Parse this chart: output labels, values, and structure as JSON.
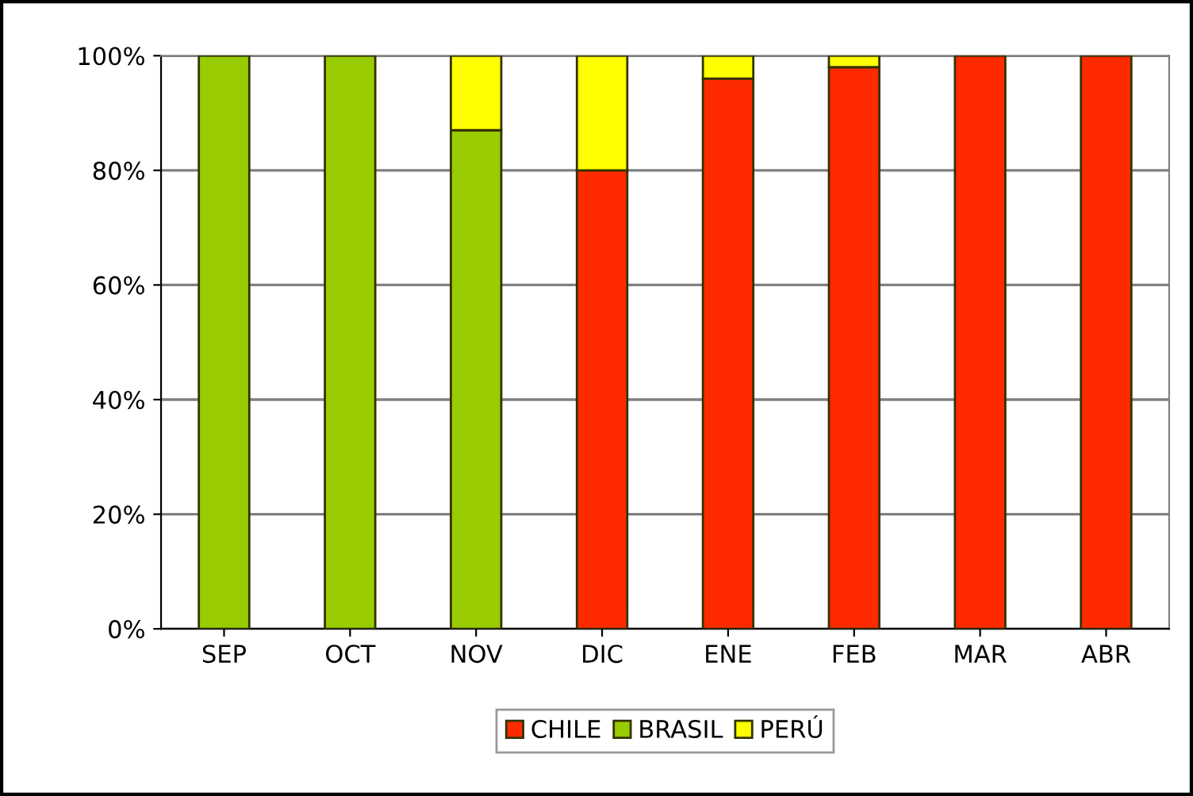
{
  "chart_data": {
    "type": "bar",
    "stacked": true,
    "categories": [
      "SEP",
      "OCT",
      "NOV",
      "DIC",
      "ENE",
      "FEB",
      "MAR",
      "ABR"
    ],
    "series": [
      {
        "name": "CHILE",
        "color": "#ff2a00",
        "values": [
          0,
          0,
          0,
          80,
          96,
          98,
          100,
          100
        ]
      },
      {
        "name": "BRASIL",
        "color": "#99cc00",
        "values": [
          100,
          100,
          87,
          0,
          0,
          0,
          0,
          0
        ]
      },
      {
        "name": "PERÚ",
        "color": "#ffff00",
        "values": [
          0,
          0,
          13,
          20,
          4,
          2,
          0,
          0
        ]
      }
    ],
    "ylim": [
      0,
      100
    ],
    "yticks": [
      {
        "value": 0,
        "label": "0%"
      },
      {
        "value": 20,
        "label": "20%"
      },
      {
        "value": 40,
        "label": "40%"
      },
      {
        "value": 60,
        "label": "60%"
      },
      {
        "value": 80,
        "label": "80%"
      },
      {
        "value": 100,
        "label": "100%"
      }
    ],
    "grid": "y",
    "legend": "bottom"
  }
}
